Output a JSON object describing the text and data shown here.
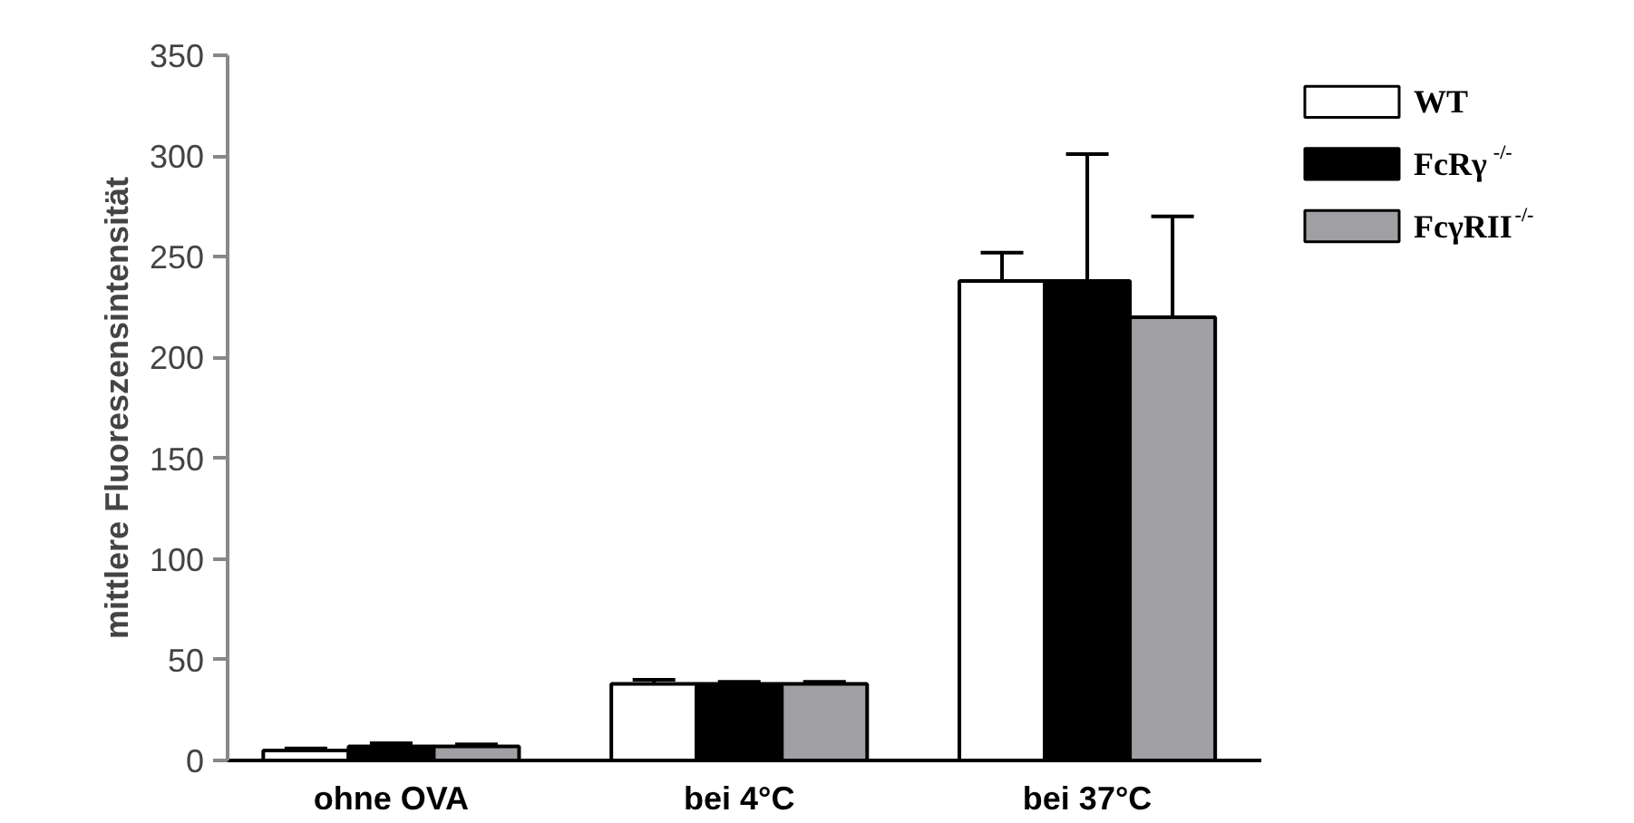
{
  "chart_data": {
    "type": "bar",
    "ylabel": "mittlere Fluoreszensintensität",
    "categories": [
      "ohne OVA",
      "bei 4°C",
      "bei 37°C"
    ],
    "series": [
      {
        "name": "WT",
        "color": "#ffffff",
        "values": [
          5,
          38,
          238
        ],
        "errors": [
          [
            5,
            6
          ],
          [
            38,
            40
          ],
          [
            238,
            252
          ]
        ]
      },
      {
        "name": "FcRγ$^{-/-}$",
        "color": "#000000",
        "values": [
          7,
          38,
          238
        ],
        "errors": [
          [
            7,
            8.5
          ],
          [
            38,
            39
          ],
          [
            238,
            301
          ]
        ]
      },
      {
        "name": "FcγRII$^{-/-}$",
        "color": "#a0a0a4",
        "values": [
          7,
          38,
          220
        ],
        "errors": [
          [
            7,
            8
          ],
          [
            38,
            39
          ],
          [
            220,
            270
          ]
        ]
      }
    ],
    "ylim": [
      0,
      350
    ],
    "yticks": [
      0,
      50,
      100,
      150,
      200,
      250,
      300,
      350
    ],
    "grid": false,
    "legend": "right"
  }
}
